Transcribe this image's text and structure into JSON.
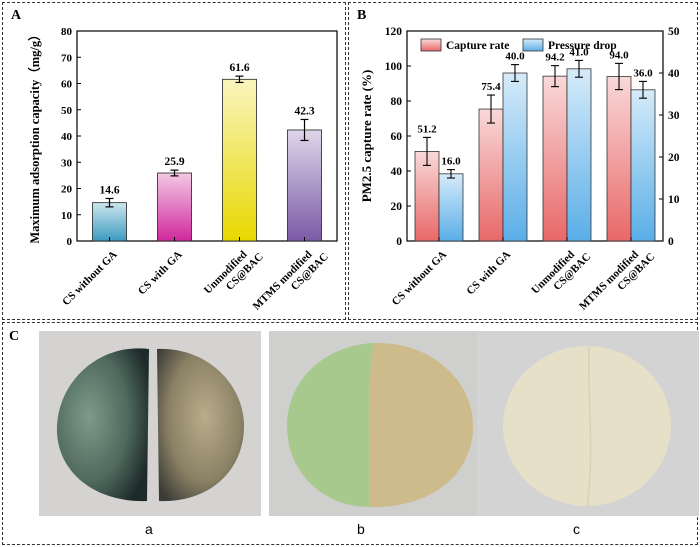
{
  "chart_data": [
    {
      "panel": "A",
      "type": "bar",
      "categories": [
        "CS without GA",
        "CS with GA",
        "Unmodified CS@BAC",
        "MTMS modified CS@BAC"
      ],
      "values": [
        14.6,
        25.9,
        61.6,
        42.3
      ],
      "errors": [
        1.6,
        1.1,
        1.2,
        4.0
      ],
      "value_labels": [
        "14.6",
        "25.9",
        "61.6",
        "42.3"
      ],
      "ylabel": "Maximum adsorption capacity（mg/g）",
      "ylim": [
        0,
        80
      ],
      "yticks": [
        "0",
        "10",
        "20",
        "30",
        "40",
        "50",
        "60",
        "70",
        "80"
      ],
      "colors": [
        "#3b9bbf",
        "#d0289c",
        "#e8d800",
        "#7a5aa6"
      ]
    },
    {
      "panel": "B",
      "type": "bar",
      "categories": [
        "CS without GA",
        "CS with GA",
        "Unmodified CS@BAC",
        "MTMS modified CS@BAC"
      ],
      "series": [
        {
          "name": "Capture rate",
          "values": [
            51.2,
            75.4,
            94.2,
            94.0
          ],
          "errors": [
            8.0,
            8.0,
            6.0,
            7.5
          ],
          "labels": [
            "51.2",
            "75.4",
            "94.2",
            "94.0"
          ],
          "axis": "left",
          "color": "#e86868"
        },
        {
          "name": "Pressure drop",
          "values": [
            16.0,
            40.0,
            41.0,
            36.0
          ],
          "errors": [
            1.0,
            2.0,
            2.0,
            2.0
          ],
          "labels": [
            "16.0",
            "40.0",
            "41.0",
            "36.0"
          ],
          "axis": "right",
          "color": "#5aaee8"
        }
      ],
      "ylabel": "PM2.5 capture rate (%)",
      "ylim": [
        0,
        120
      ],
      "yticks": [
        "0",
        "20",
        "40",
        "60",
        "80",
        "100",
        "120"
      ],
      "ylim_right": [
        0,
        50
      ],
      "yticks_right": [
        "0",
        "10",
        "20",
        "30",
        "40",
        "50"
      ]
    }
  ],
  "panels": {
    "a": "A",
    "b": "B",
    "c": "C"
  },
  "photo_captions": [
    "a",
    "b",
    "c"
  ]
}
